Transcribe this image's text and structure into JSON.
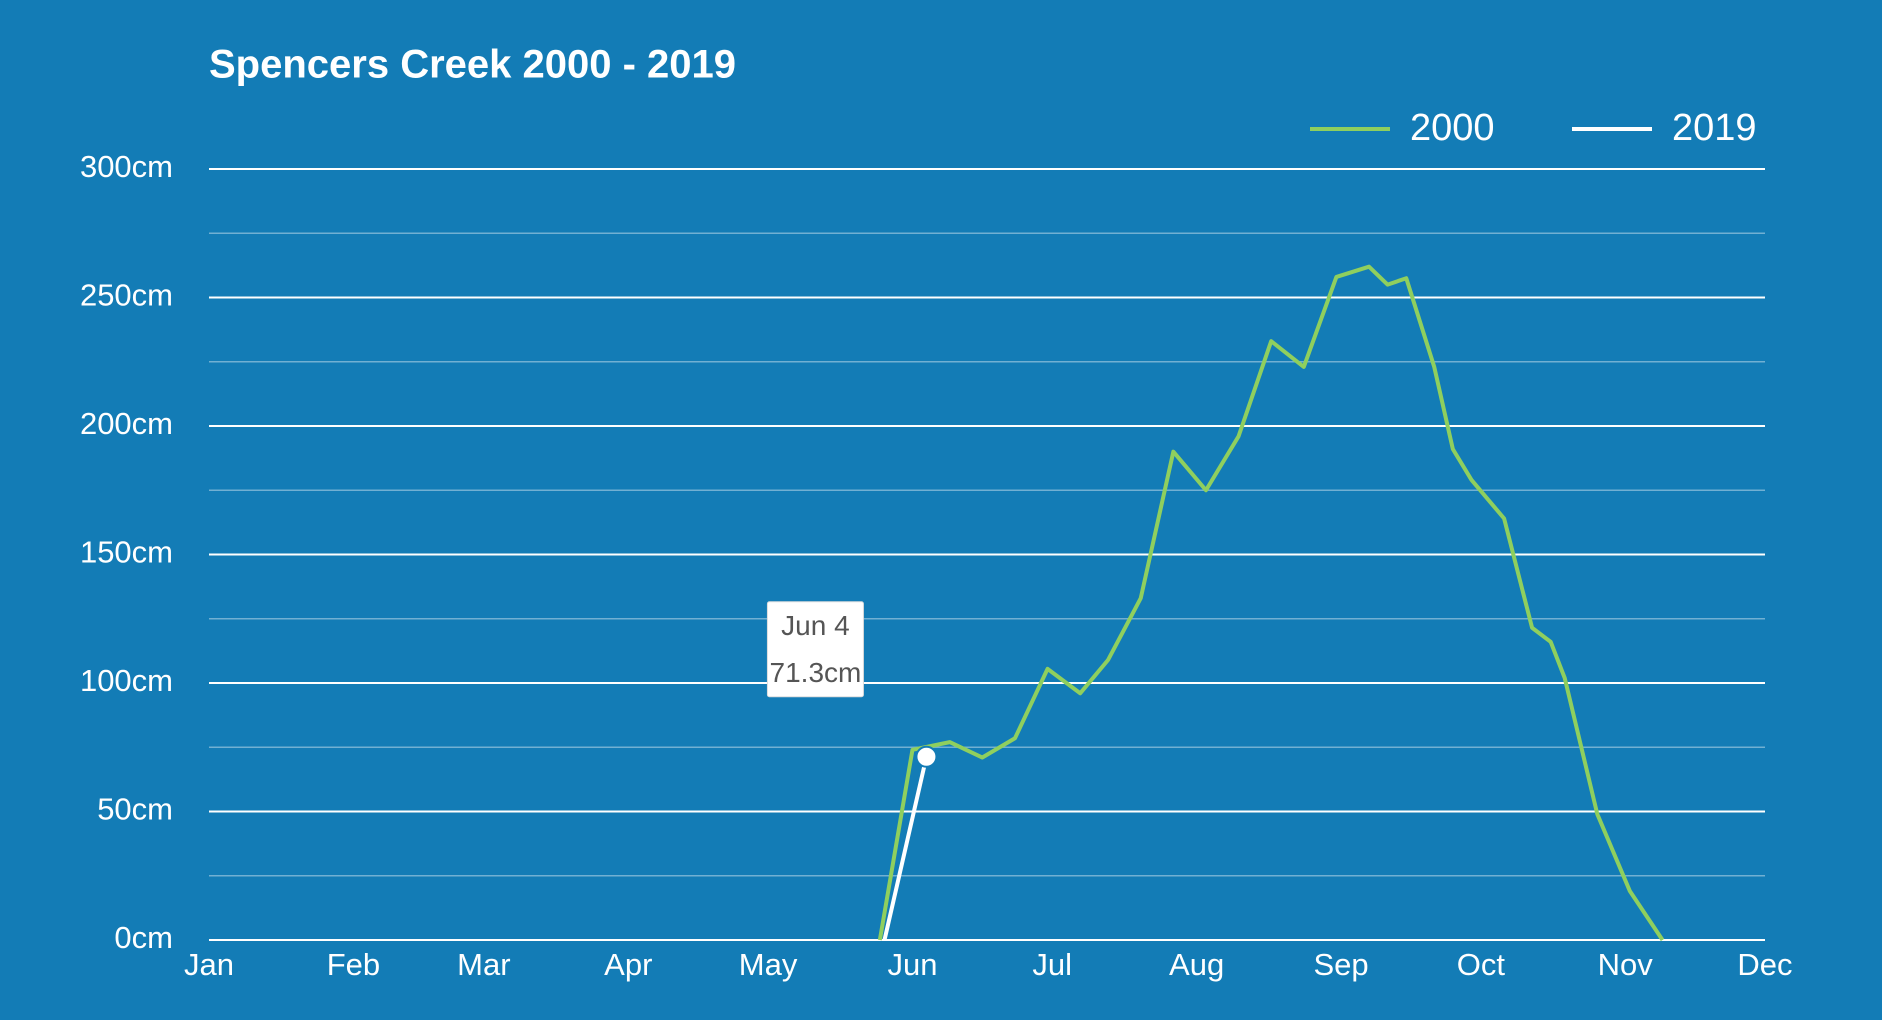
{
  "chart_data": {
    "type": "line",
    "title": "Spencers Creek 2000 - 2019",
    "xlim": [
      0,
      334
    ],
    "xticks": [
      {
        "value": 0,
        "label": "Jan"
      },
      {
        "value": 31,
        "label": "Feb"
      },
      {
        "value": 59,
        "label": "Mar"
      },
      {
        "value": 90,
        "label": "Apr"
      },
      {
        "value": 120,
        "label": "May"
      },
      {
        "value": 151,
        "label": "Jun"
      },
      {
        "value": 181,
        "label": "Jul"
      },
      {
        "value": 212,
        "label": "Aug"
      },
      {
        "value": 243,
        "label": "Sep"
      },
      {
        "value": 273,
        "label": "Oct"
      },
      {
        "value": 304,
        "label": "Nov"
      },
      {
        "value": 334,
        "label": "Dec"
      }
    ],
    "ylim": [
      0,
      300
    ],
    "yticks": [
      {
        "value": 0,
        "label": "0cm"
      },
      {
        "value": 50,
        "label": "50cm"
      },
      {
        "value": 100,
        "label": "100cm"
      },
      {
        "value": 150,
        "label": "150cm"
      },
      {
        "value": 200,
        "label": "200cm"
      },
      {
        "value": 250,
        "label": "250cm"
      },
      {
        "value": 300,
        "label": "300cm"
      }
    ],
    "minor_yticks": [
      25,
      75,
      125,
      175,
      225,
      275
    ],
    "grid": true,
    "legend": "top-right",
    "series": [
      {
        "name": "2000",
        "color": "#8fcf5e",
        "x": [
          144,
          151,
          159,
          166,
          173,
          180,
          187,
          193,
          200,
          207,
          214,
          221,
          228,
          235,
          242,
          249,
          253,
          257,
          263,
          267,
          271,
          278,
          284,
          288,
          291,
          298,
          305,
          312
        ],
        "values": [
          0,
          74,
          77,
          71,
          78.5,
          105.5,
          96,
          109,
          133,
          190,
          175,
          196,
          233,
          223,
          258,
          262,
          255,
          257.5,
          223,
          191,
          179,
          164,
          121.5,
          116,
          102,
          49,
          19,
          0
        ]
      },
      {
        "name": "2019",
        "color": "#ffffff",
        "x": [
          145,
          154
        ],
        "values": [
          0,
          71.3
        ]
      }
    ],
    "tooltip": {
      "series": 1,
      "point": 1,
      "date": "Jun 4",
      "value_label": "71.3cm"
    }
  }
}
